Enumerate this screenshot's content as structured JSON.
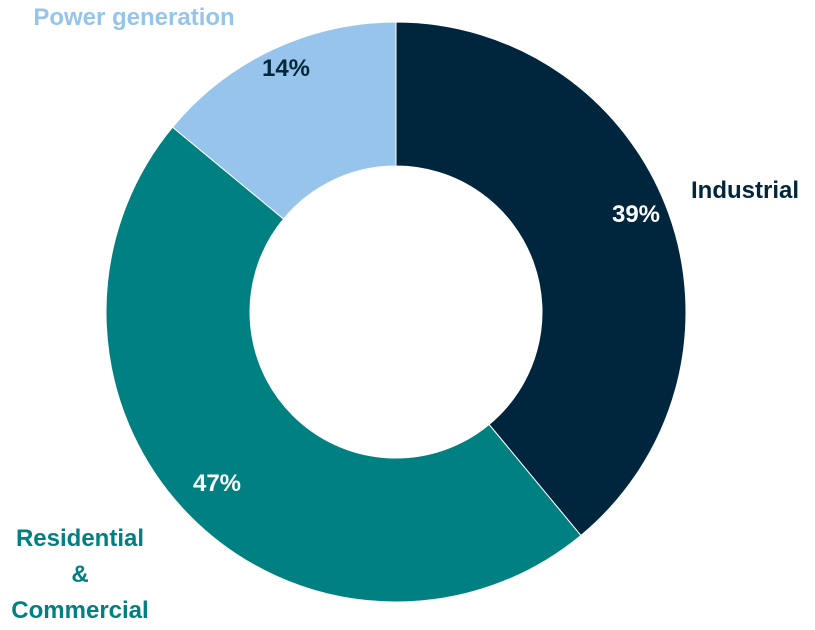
{
  "chart_data": {
    "type": "pie",
    "donut": true,
    "slices": [
      {
        "label": "Industrial",
        "label_lines": [
          "Industrial"
        ],
        "value": 39,
        "value_label": "39%",
        "color": "#00263e",
        "label_color": "#00263e",
        "pct_color": "#ffffff"
      },
      {
        "label": "Residential & Commercial",
        "label_lines": [
          "Residential",
          "&",
          "Commercial"
        ],
        "value": 47,
        "value_label": "47%",
        "color": "#008080",
        "label_color": "#008080",
        "pct_color": "#ffffff"
      },
      {
        "label": "Power generation",
        "label_lines": [
          "Power generation"
        ],
        "value": 14,
        "value_label": "14%",
        "color": "#97c4ea",
        "label_color": "#97c4ea",
        "pct_color": "#00263e"
      }
    ],
    "start": "12 o'clock",
    "direction": "clockwise"
  }
}
